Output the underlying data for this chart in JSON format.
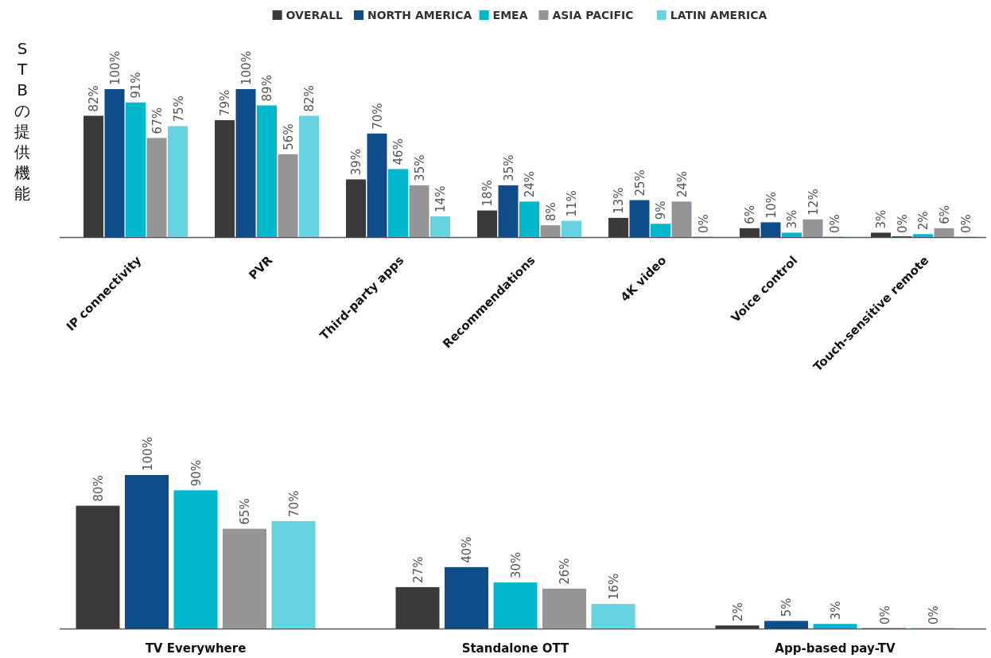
{
  "chart_data": [
    {
      "type": "bar",
      "ylabel": "STBの提供機能",
      "legend": "top",
      "categories": [
        "IP connectivity",
        "PVR",
        "Third-party apps",
        "Recommendations",
        "4K video",
        "Voice control",
        "Touch-sensitive remote"
      ],
      "series": [
        {
          "name": "OVERALL",
          "color": "#3a3a3a",
          "values": [
            82,
            79,
            39,
            18,
            13,
            6,
            3
          ],
          "value_labels": [
            "82%",
            "79%",
            "39%",
            "18%",
            "13%",
            "6%",
            "3%"
          ]
        },
        {
          "name": "NORTH AMERICA",
          "color": "#0f4c8a",
          "values": [
            100,
            100,
            70,
            35,
            25,
            10,
            0
          ],
          "value_labels": [
            "100%",
            "100%",
            "70%",
            "35%",
            "25%",
            "10%",
            "0%"
          ]
        },
        {
          "name": "EMEA",
          "color": "#00b8cc",
          "values": [
            91,
            89,
            46,
            24,
            9,
            3,
            2
          ],
          "value_labels": [
            "91%",
            "89%",
            "46%",
            "24%",
            "9%",
            "3%",
            "2%"
          ]
        },
        {
          "name": "ASIA PACIFIC",
          "color": "#939598",
          "values": [
            67,
            56,
            35,
            8,
            24,
            12,
            6
          ],
          "value_labels": [
            "67%",
            "56%",
            "35%",
            "8%",
            "24%",
            "12%",
            "6%"
          ]
        },
        {
          "name": "LATIN AMERICA",
          "color": "#66d4e0",
          "values": [
            75,
            82,
            14,
            11,
            0,
            0,
            0
          ],
          "value_labels": [
            "75%",
            "82%",
            "14%",
            "11%",
            "0%",
            "0%",
            "0%"
          ]
        }
      ]
    },
    {
      "type": "bar",
      "categories": [
        "TV Everywhere",
        "Standalone OTT",
        "App-based pay-TV"
      ],
      "series": [
        {
          "color": "#3a3a3a",
          "values": [
            80,
            27,
            2
          ],
          "value_labels": [
            "80%",
            "27%",
            "2%"
          ]
        },
        {
          "color": "#0f4c8a",
          "values": [
            100,
            40,
            5
          ],
          "value_labels": [
            "100%",
            "40%",
            "5%"
          ]
        },
        {
          "color": "#00b8cc",
          "values": [
            90,
            30,
            3
          ],
          "value_labels": [
            "90%",
            "30%",
            "3%"
          ]
        },
        {
          "color": "#939598",
          "values": [
            65,
            26,
            0
          ],
          "value_labels": [
            "65%",
            "26%",
            "0%"
          ]
        },
        {
          "color": "#66d4e0",
          "values": [
            70,
            16,
            0
          ],
          "value_labels": [
            "70%",
            "16%",
            "0%"
          ]
        }
      ]
    }
  ]
}
